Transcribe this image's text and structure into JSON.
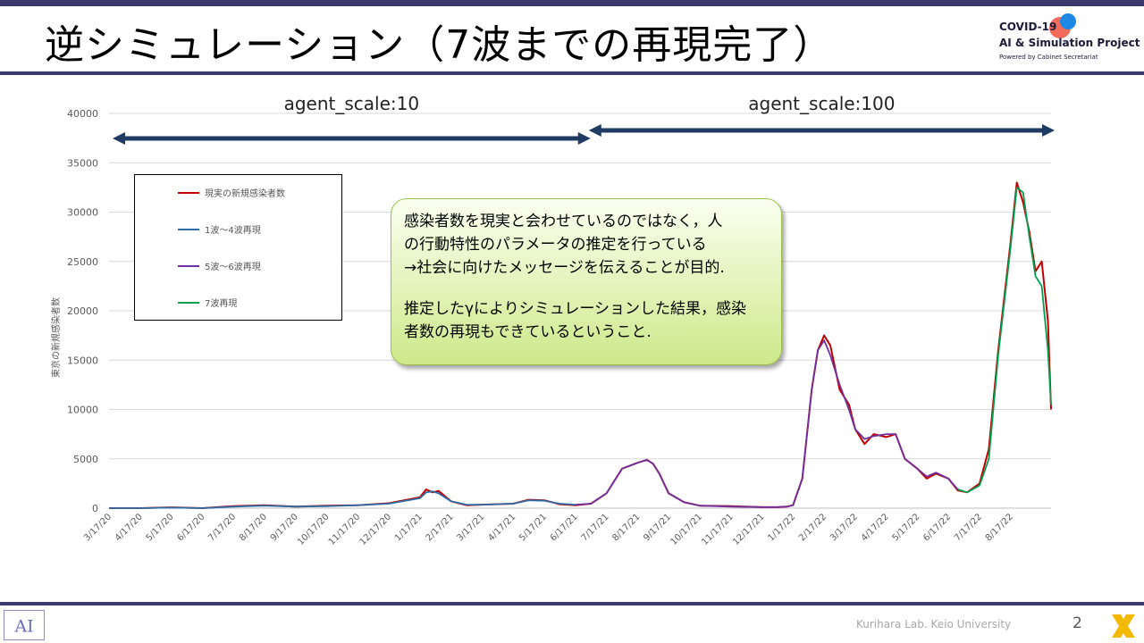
{
  "slide": {
    "title": "逆シミュレーション（7波までの再現完了）",
    "logo": {
      "line1": "COVID-19",
      "line2": "AI & Simulation Project",
      "line3": "Powered by Cabinet Secretariat"
    },
    "footer_credit": "Kurihara Lab. Keio University",
    "page_number": "2",
    "note_lines_1": [
      "感染者数を現実と会わせているのではなく，人",
      "の行動特性のパラメータの推定を行っている",
      "→社会に向けたメッセージを伝えることが目的."
    ],
    "note_lines_2": [
      "推定したγによりシミュレーションした結果，感染",
      "者数の再現もできているということ."
    ],
    "colors": {
      "accent": "#3b3a6e",
      "arrow": "#1f3b64"
    }
  },
  "chart_data": {
    "type": "line",
    "ylabel": "東京の新規感染者数",
    "ylim": [
      0,
      40000
    ],
    "yticks": [
      0,
      5000,
      10000,
      15000,
      20000,
      25000,
      30000,
      35000,
      40000
    ],
    "x_tick_labels": [
      "3/17/20",
      "4/17/20",
      "5/17/20",
      "6/17/20",
      "7/17/20",
      "8/17/20",
      "9/17/20",
      "10/17/20",
      "11/17/20",
      "12/17/20",
      "1/17/21",
      "2/17/21",
      "3/17/21",
      "4/17/21",
      "5/17/21",
      "6/17/21",
      "7/17/21",
      "8/17/21",
      "9/17/21",
      "10/17/21",
      "11/17/21",
      "12/17/21",
      "1/17/22",
      "2/17/22",
      "3/17/22",
      "4/17/22",
      "5/17/22",
      "6/17/22",
      "7/17/22",
      "8/17/22"
    ],
    "grid": true,
    "legend_position": "top-left",
    "annotations": [
      {
        "text": "agent_scale:10",
        "from_month": 0,
        "to_month": 15.2
      },
      {
        "text": "agent_scale:100",
        "from_month": 15.2,
        "to_month": 30.3
      }
    ],
    "series": [
      {
        "name": "現実の新規感染者数",
        "color": "#c00000",
        "month_index": [
          0,
          1,
          2,
          3,
          4,
          5,
          6,
          7,
          8,
          9,
          10,
          10.2,
          10.4,
          10.6,
          11,
          11.5,
          12,
          13,
          13.5,
          14,
          14.5,
          15,
          15.5,
          16,
          16.5,
          17,
          17.3,
          17.5,
          17.7,
          18,
          18.5,
          19,
          20,
          21,
          21.5,
          21.8,
          22,
          22.3,
          22.6,
          22.8,
          23,
          23.2,
          23.5,
          23.8,
          24,
          24.3,
          24.6,
          25,
          25.3,
          25.6,
          26,
          26.3,
          26.6,
          27,
          27.3,
          27.6,
          28,
          28.3,
          28.6,
          29,
          29.2,
          29.4,
          29.6,
          29.8,
          30,
          30.2,
          30.3
        ],
        "values": [
          0,
          0,
          80,
          0,
          200,
          300,
          150,
          250,
          300,
          500,
          1100,
          1900,
          1600,
          1750,
          700,
          300,
          350,
          450,
          850,
          800,
          400,
          300,
          450,
          1500,
          4000,
          4600,
          4900,
          4500,
          3500,
          1500,
          600,
          250,
          200,
          100,
          100,
          150,
          300,
          3000,
          12000,
          16000,
          17500,
          16500,
          12000,
          10500,
          8000,
          6500,
          7500,
          7200,
          7500,
          5000,
          4000,
          3000,
          3500,
          3000,
          1800,
          1600,
          2500,
          6000,
          16000,
          27000,
          33000,
          31000,
          28000,
          24000,
          25000,
          19000,
          10000
        ]
      },
      {
        "name": "1波～4波再現",
        "color": "#2e6ea6",
        "month_index": [
          0,
          1,
          2,
          3,
          4,
          5,
          6,
          7,
          8,
          9,
          10,
          10.2,
          10.4,
          10.6,
          11,
          11.5,
          12,
          13,
          13.5,
          14,
          14.5,
          15
        ],
        "values": [
          0,
          0,
          50,
          0,
          150,
          250,
          150,
          200,
          300,
          450,
          1000,
          1600,
          1700,
          1500,
          700,
          350,
          350,
          450,
          800,
          750,
          450,
          350
        ]
      },
      {
        "name": "5波～6波再現",
        "color": "#7030a0",
        "month_index": [
          15,
          15.5,
          16,
          16.5,
          17,
          17.3,
          17.5,
          17.7,
          18,
          18.5,
          19,
          20,
          21,
          21.5,
          21.8,
          22,
          22.3,
          22.6,
          22.8,
          23,
          23.2,
          23.5,
          23.8,
          24,
          24.3,
          24.6,
          25,
          25.3,
          25.6,
          26,
          26.3,
          26.6,
          27,
          27.3
        ],
        "values": [
          350,
          450,
          1500,
          4000,
          4600,
          4900,
          4500,
          3500,
          1500,
          600,
          250,
          150,
          100,
          100,
          150,
          300,
          3000,
          12000,
          16000,
          17000,
          15500,
          12500,
          10000,
          8000,
          7000,
          7300,
          7500,
          7500,
          5000,
          4000,
          3200,
          3600,
          3000,
          1900
        ]
      },
      {
        "name": "7波再現",
        "color": "#00a050",
        "month_index": [
          27.3,
          27.6,
          28,
          28.3,
          28.6,
          29,
          29.2,
          29.4,
          29.6,
          29.8,
          30,
          30.2,
          30.3
        ],
        "values": [
          1900,
          1600,
          2300,
          5000,
          15500,
          26500,
          32500,
          32000,
          27500,
          23500,
          22500,
          16000,
          10500
        ]
      }
    ]
  }
}
